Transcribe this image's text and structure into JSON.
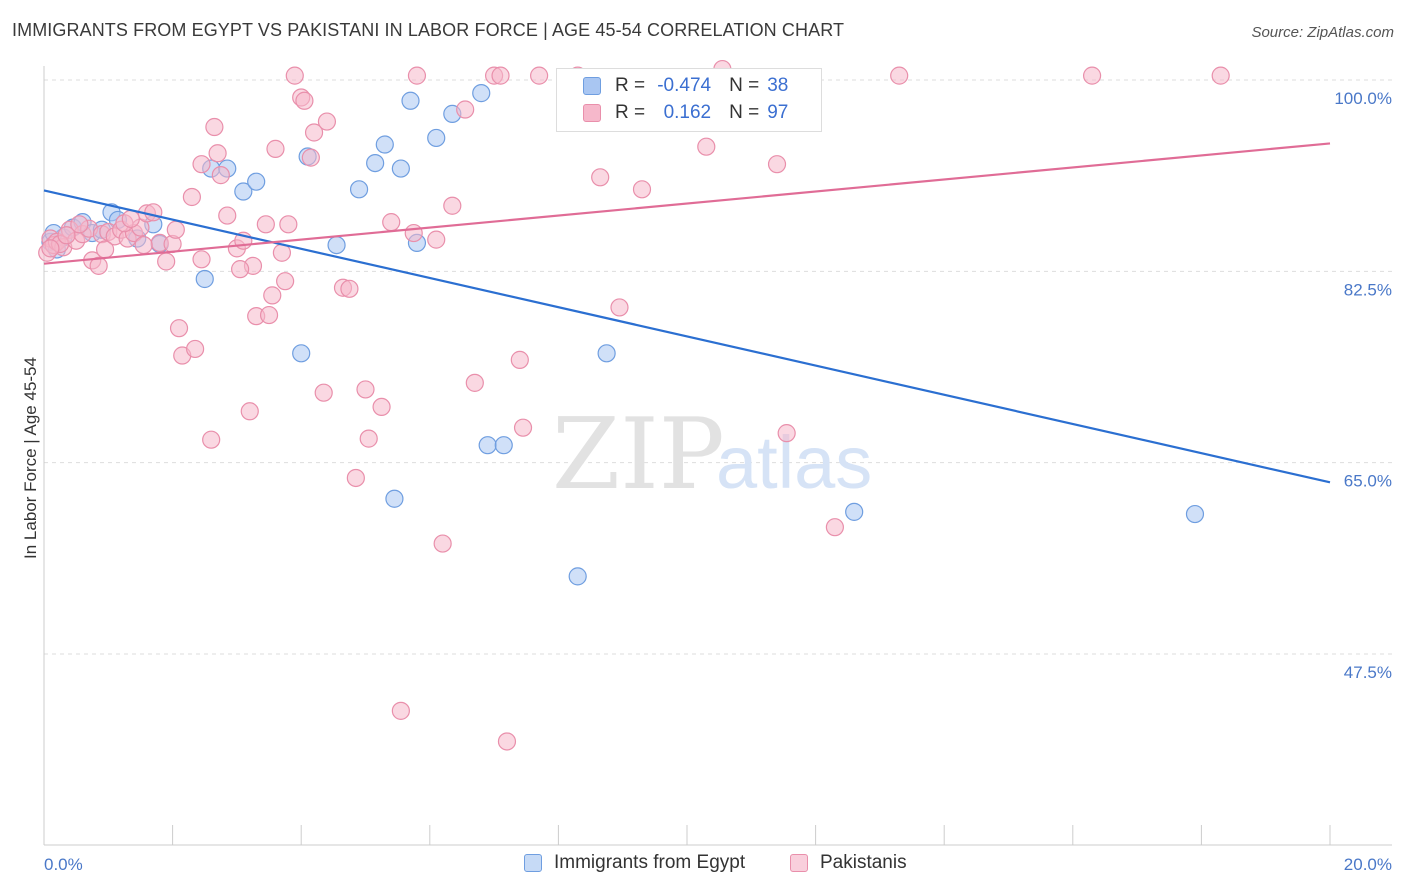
{
  "title": "IMMIGRANTS FROM EGYPT VS PAKISTANI IN LABOR FORCE | AGE 45-54 CORRELATION CHART",
  "source": "Source: ZipAtlas.com",
  "watermark": {
    "zip": "ZIP",
    "atlas": "atlas"
  },
  "legend": {
    "egypt": {
      "r_label": "R =",
      "r_value": "-0.474",
      "n_label": "N =",
      "n_value": "38"
    },
    "pakistani": {
      "r_label": "R =",
      "r_value": "0.162",
      "n_label": "N =",
      "n_value": "97"
    }
  },
  "colors": {
    "egypt_fill": "#a9c6f2",
    "egypt_stroke": "#6f9ee0",
    "egypt_line": "#2b6fd1",
    "pak_fill": "#f6b8cb",
    "pak_stroke": "#e98fab",
    "pak_line": "#e06c96",
    "tick_text": "#4a78c8",
    "grid": "#dddddd"
  },
  "chart_data": {
    "type": "scatter",
    "title": "IMMIGRANTS FROM EGYPT VS PAKISTANI IN LABOR FORCE | AGE 45-54 CORRELATION CHART",
    "xlabel": "",
    "ylabel": "In Labor Force | Age 45-54",
    "xlim": [
      0,
      20
    ],
    "ylim": [
      35,
      103
    ],
    "x_tick_labels": [
      "0.0%",
      "20.0%"
    ],
    "y_ticks": [
      100,
      82.5,
      65,
      47.5
    ],
    "y_tick_labels": [
      "100.0%",
      "82.5%",
      "65.0%",
      "47.5%"
    ],
    "grid": true,
    "legend_position": "bottom",
    "series": [
      {
        "name": "Immigrants from Egypt",
        "r": -0.474,
        "n": 38,
        "trend": {
          "x": [
            0,
            20
          ],
          "y": [
            89.9,
            63.2
          ]
        },
        "points": [
          [
            0.1,
            85.2
          ],
          [
            0.2,
            84.5
          ],
          [
            0.3,
            85.6
          ],
          [
            0.45,
            86.5
          ],
          [
            0.6,
            87.0
          ],
          [
            0.75,
            86.0
          ],
          [
            0.9,
            86.3
          ],
          [
            1.05,
            87.9
          ],
          [
            1.15,
            87.2
          ],
          [
            1.45,
            85.5
          ],
          [
            1.7,
            86.8
          ],
          [
            1.8,
            85.0
          ],
          [
            2.6,
            91.9
          ],
          [
            2.85,
            91.9
          ],
          [
            3.1,
            89.8
          ],
          [
            2.5,
            81.8
          ],
          [
            3.3,
            90.7
          ],
          [
            4.1,
            93.0
          ],
          [
            4.0,
            75.0
          ],
          [
            4.55,
            84.9
          ],
          [
            4.9,
            90.0
          ],
          [
            5.15,
            92.4
          ],
          [
            5.3,
            94.1
          ],
          [
            5.55,
            91.9
          ],
          [
            5.7,
            98.1
          ],
          [
            6.1,
            94.7
          ],
          [
            6.35,
            96.9
          ],
          [
            5.8,
            85.1
          ],
          [
            6.8,
            98.8
          ],
          [
            6.9,
            66.6
          ],
          [
            7.15,
            66.6
          ],
          [
            5.45,
            61.7
          ],
          [
            8.3,
            54.6
          ],
          [
            8.75,
            75.0
          ],
          [
            10.0,
            97.3
          ],
          [
            12.6,
            60.5
          ],
          [
            17.9,
            60.3
          ],
          [
            0.15,
            86.0
          ]
        ]
      },
      {
        "name": "Pakistanis",
        "r": 0.162,
        "n": 97,
        "trend": {
          "x": [
            0,
            20
          ],
          "y": [
            83.2,
            94.2
          ]
        },
        "points": [
          [
            0.05,
            84.2
          ],
          [
            0.1,
            85.5
          ],
          [
            0.15,
            84.9
          ],
          [
            0.2,
            85.2
          ],
          [
            0.3,
            84.7
          ],
          [
            0.4,
            86.3
          ],
          [
            0.5,
            85.3
          ],
          [
            0.6,
            85.9
          ],
          [
            0.7,
            86.4
          ],
          [
            0.75,
            83.5
          ],
          [
            0.85,
            83.0
          ],
          [
            0.9,
            85.9
          ],
          [
            1.0,
            86.1
          ],
          [
            1.1,
            85.7
          ],
          [
            1.2,
            86.3
          ],
          [
            1.3,
            85.5
          ],
          [
            1.4,
            86.0
          ],
          [
            1.5,
            86.5
          ],
          [
            1.6,
            87.8
          ],
          [
            1.7,
            87.9
          ],
          [
            1.8,
            85.1
          ],
          [
            1.9,
            83.4
          ],
          [
            2.0,
            85.0
          ],
          [
            2.05,
            86.3
          ],
          [
            2.1,
            77.3
          ],
          [
            2.15,
            74.8
          ],
          [
            2.3,
            89.3
          ],
          [
            2.35,
            75.4
          ],
          [
            2.45,
            83.6
          ],
          [
            2.6,
            67.1
          ],
          [
            2.65,
            95.7
          ],
          [
            2.7,
            93.3
          ],
          [
            2.75,
            91.3
          ],
          [
            2.85,
            87.6
          ],
          [
            3.0,
            84.6
          ],
          [
            3.1,
            85.3
          ],
          [
            3.2,
            69.7
          ],
          [
            3.25,
            83.0
          ],
          [
            3.3,
            78.4
          ],
          [
            3.45,
            86.8
          ],
          [
            3.5,
            78.5
          ],
          [
            3.6,
            93.7
          ],
          [
            3.7,
            84.2
          ],
          [
            3.75,
            81.6
          ],
          [
            3.8,
            86.8
          ],
          [
            3.9,
            100.4
          ],
          [
            4.0,
            98.4
          ],
          [
            4.05,
            98.1
          ],
          [
            4.15,
            92.9
          ],
          [
            4.2,
            95.2
          ],
          [
            4.35,
            71.4
          ],
          [
            4.4,
            96.2
          ],
          [
            4.65,
            81.0
          ],
          [
            4.75,
            80.9
          ],
          [
            4.85,
            63.6
          ],
          [
            5.0,
            71.7
          ],
          [
            5.05,
            67.2
          ],
          [
            5.25,
            70.1
          ],
          [
            5.4,
            87.0
          ],
          [
            5.55,
            42.3
          ],
          [
            5.75,
            86.0
          ],
          [
            5.8,
            100.4
          ],
          [
            6.1,
            85.4
          ],
          [
            6.2,
            57.6
          ],
          [
            6.35,
            88.5
          ],
          [
            6.55,
            97.3
          ],
          [
            6.7,
            72.3
          ],
          [
            7.0,
            100.4
          ],
          [
            7.1,
            100.4
          ],
          [
            7.2,
            39.5
          ],
          [
            7.4,
            74.4
          ],
          [
            7.45,
            68.2
          ],
          [
            7.7,
            100.4
          ],
          [
            8.3,
            100.4
          ],
          [
            8.65,
            91.1
          ],
          [
            8.95,
            79.2
          ],
          [
            9.3,
            90.0
          ],
          [
            10.3,
            93.9
          ],
          [
            10.55,
            101.0
          ],
          [
            10.75,
            97.4
          ],
          [
            11.4,
            92.3
          ],
          [
            11.55,
            67.7
          ],
          [
            12.3,
            59.1
          ],
          [
            13.3,
            100.4
          ],
          [
            16.3,
            100.4
          ],
          [
            18.3,
            100.4
          ],
          [
            1.25,
            86.9
          ],
          [
            1.55,
            84.9
          ],
          [
            2.45,
            92.3
          ],
          [
            3.05,
            82.7
          ],
          [
            3.55,
            80.3
          ],
          [
            0.25,
            85.0
          ],
          [
            0.55,
            86.8
          ],
          [
            0.95,
            84.5
          ],
          [
            1.35,
            87.3
          ],
          [
            0.1,
            84.6
          ],
          [
            0.35,
            85.8
          ]
        ]
      }
    ]
  },
  "bottom_legend": {
    "egypt": "Immigrants from Egypt",
    "pakistani": "Pakistanis"
  }
}
